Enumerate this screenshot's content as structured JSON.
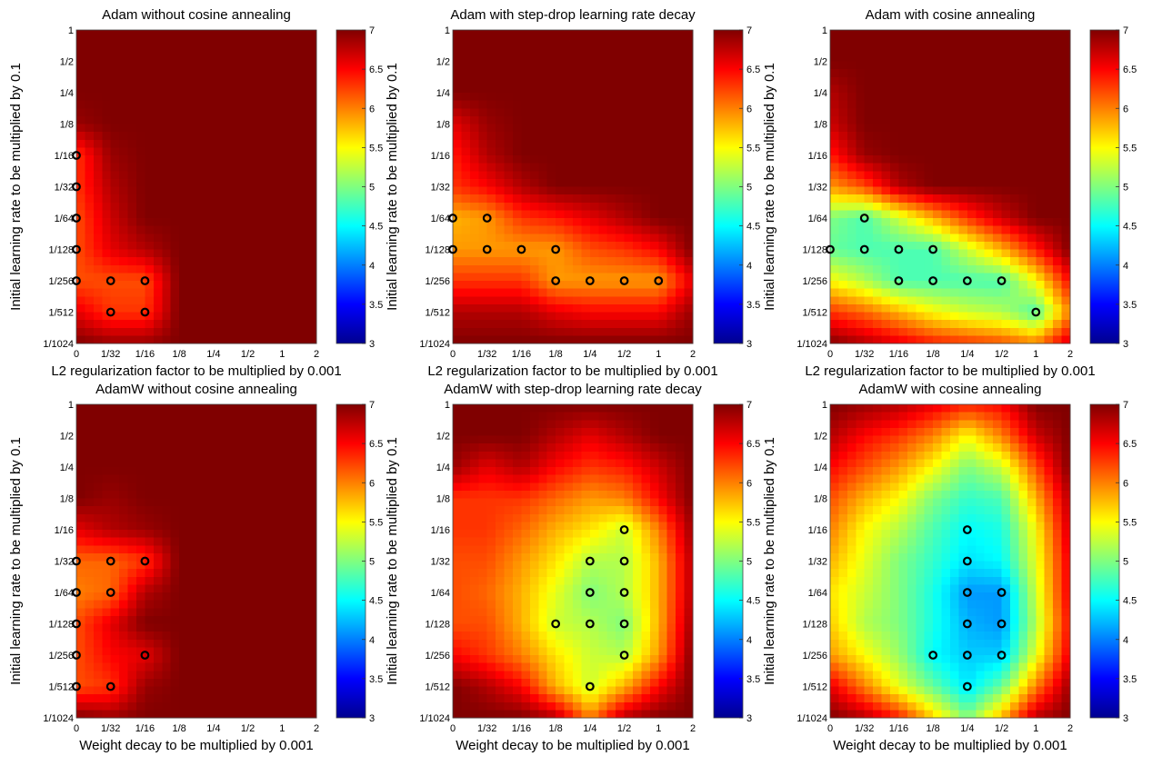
{
  "chart_data": {
    "type": "heatmap",
    "colorbar": {
      "min": 3,
      "max": 7,
      "ticks": [
        "3",
        "3.5",
        "4",
        "4.5",
        "5",
        "5.5",
        "6",
        "6.5",
        "7"
      ],
      "colormap": "jet"
    },
    "x_ticks": [
      "0",
      "1/32",
      "1/16",
      "1/8",
      "1/4",
      "1/2",
      "1",
      "2"
    ],
    "y_ticks": [
      "1",
      "1/2",
      "1/4",
      "1/8",
      "1/16",
      "1/32",
      "1/64",
      "1/128",
      "1/256",
      "1/512",
      "1/1024"
    ],
    "marker_color": "#000000",
    "panels": [
      {
        "title": "Adam without cosine annealing",
        "xlabel": "L2 regularization factor to be multiplied by 0.001",
        "ylabel": "Initial learning rate to be multiplied by 0.1",
        "grid": [
          [
            7,
            7,
            7,
            7,
            7,
            7,
            7,
            7
          ],
          [
            7,
            7,
            7,
            7,
            7,
            7,
            7,
            7
          ],
          [
            7,
            7,
            7,
            7,
            7,
            7,
            7,
            7
          ],
          [
            6.9,
            7,
            7,
            7,
            7,
            7,
            7,
            7
          ],
          [
            6.3,
            6.9,
            7,
            7,
            7,
            7,
            7,
            7
          ],
          [
            6.3,
            6.8,
            7,
            7,
            7,
            7,
            7,
            7
          ],
          [
            6.2,
            6.7,
            7,
            7,
            7,
            7,
            7,
            7
          ],
          [
            6.2,
            6.6,
            6.8,
            7,
            7,
            7,
            7,
            7
          ],
          [
            6.2,
            6.2,
            6.2,
            7,
            7,
            7,
            7,
            7
          ],
          [
            6.6,
            6.3,
            6.3,
            7,
            7,
            7,
            7,
            7
          ],
          [
            7,
            6.9,
            6.9,
            7,
            7,
            7,
            7,
            7
          ]
        ],
        "best_points": [
          [
            "0",
            "1/16"
          ],
          [
            "0",
            "1/32"
          ],
          [
            "0",
            "1/64"
          ],
          [
            "0",
            "1/128"
          ],
          [
            "0",
            "1/256"
          ],
          [
            "1/32",
            "1/256"
          ],
          [
            "1/16",
            "1/256"
          ],
          [
            "1/32",
            "1/512"
          ],
          [
            "1/16",
            "1/512"
          ]
        ]
      },
      {
        "title": "Adam with step-drop learning rate decay",
        "xlabel": "L2 regularization factor to be multiplied by 0.001",
        "ylabel": "Initial learning rate to be multiplied by 0.1",
        "grid": [
          [
            7,
            7,
            7,
            7,
            7,
            7,
            7,
            7
          ],
          [
            7,
            7,
            7,
            7,
            7,
            7,
            7,
            7
          ],
          [
            7,
            7,
            7,
            7,
            7,
            7,
            7,
            7
          ],
          [
            6.6,
            6.9,
            7,
            7,
            7,
            7,
            7,
            7
          ],
          [
            6.4,
            6.8,
            7,
            7,
            7,
            7,
            7,
            7
          ],
          [
            6.3,
            6.5,
            6.8,
            7,
            7,
            7,
            7,
            7
          ],
          [
            5.8,
            5.9,
            6.3,
            6.4,
            6.6,
            6.8,
            7,
            7
          ],
          [
            5.9,
            5.9,
            5.9,
            5.9,
            6.2,
            6.3,
            6.5,
            7
          ],
          [
            6.3,
            6.3,
            6.3,
            5.9,
            5.9,
            5.9,
            5.9,
            6.6
          ],
          [
            6.8,
            6.8,
            6.8,
            6.6,
            6.5,
            6.5,
            6.5,
            6.9
          ],
          [
            7,
            7,
            7,
            7,
            7,
            7,
            7,
            7
          ]
        ],
        "best_points": [
          [
            "0",
            "1/64"
          ],
          [
            "1/32",
            "1/64"
          ],
          [
            "0",
            "1/128"
          ],
          [
            "1/32",
            "1/128"
          ],
          [
            "1/16",
            "1/128"
          ],
          [
            "1/8",
            "1/128"
          ],
          [
            "1/8",
            "1/256"
          ],
          [
            "1/4",
            "1/256"
          ],
          [
            "1/2",
            "1/256"
          ],
          [
            "1",
            "1/256"
          ]
        ]
      },
      {
        "title": "Adam with cosine annealing",
        "xlabel": "L2 regularization factor to be multiplied by 0.001",
        "ylabel": "Initial learning rate to be multiplied by 0.1",
        "grid": [
          [
            7,
            7,
            7,
            7,
            7,
            7,
            7,
            7
          ],
          [
            7,
            7,
            7,
            7,
            7,
            7,
            7,
            7
          ],
          [
            6.8,
            7,
            7,
            7,
            7,
            7,
            7,
            7
          ],
          [
            6.7,
            7,
            7,
            7,
            7,
            7,
            7,
            7
          ],
          [
            6.4,
            6.9,
            7,
            7,
            7,
            7,
            7,
            7
          ],
          [
            5.9,
            6.2,
            6.8,
            7,
            7,
            7,
            7,
            7
          ],
          [
            5.0,
            4.8,
            5.3,
            5.8,
            6.3,
            6.7,
            7,
            7
          ],
          [
            4.9,
            4.8,
            4.8,
            4.8,
            5.3,
            5.8,
            6.4,
            7
          ],
          [
            5.5,
            5.2,
            4.8,
            4.8,
            4.8,
            4.8,
            5.5,
            6.5
          ],
          [
            6.3,
            6.1,
            5.8,
            5.5,
            5.3,
            5.2,
            4.8,
            6.0
          ],
          [
            7,
            6.8,
            6.6,
            6.4,
            6.3,
            6.2,
            6.0,
            6.7
          ]
        ],
        "best_points": [
          [
            "1/32",
            "1/64"
          ],
          [
            "0",
            "1/128"
          ],
          [
            "1/32",
            "1/128"
          ],
          [
            "1/16",
            "1/128"
          ],
          [
            "1/8",
            "1/128"
          ],
          [
            "1/16",
            "1/256"
          ],
          [
            "1/8",
            "1/256"
          ],
          [
            "1/4",
            "1/256"
          ],
          [
            "1/2",
            "1/256"
          ],
          [
            "1",
            "1/512"
          ]
        ]
      },
      {
        "title": "AdamW without cosine annealing",
        "xlabel": "Weight decay to be multiplied by 0.001",
        "ylabel": "Initial learning rate to be multiplied by 0.1",
        "grid": [
          [
            7,
            7,
            7,
            7,
            7,
            7,
            7,
            7
          ],
          [
            7,
            7,
            7,
            7,
            7,
            7,
            7,
            7
          ],
          [
            7,
            7,
            7,
            7,
            7,
            7,
            7,
            7
          ],
          [
            7,
            6.9,
            7,
            7,
            7,
            7,
            7,
            7
          ],
          [
            6.6,
            6.8,
            6.9,
            7,
            7,
            7,
            7,
            7
          ],
          [
            6.1,
            6.1,
            6.3,
            7,
            7,
            7,
            7,
            7
          ],
          [
            6.0,
            6.1,
            6.8,
            7,
            7,
            7,
            7,
            7
          ],
          [
            6.2,
            6.6,
            7,
            7,
            7,
            7,
            7,
            7
          ],
          [
            6.2,
            6.5,
            6.6,
            7,
            7,
            7,
            7,
            7
          ],
          [
            6.2,
            6.3,
            6.9,
            7,
            7,
            7,
            7,
            7
          ],
          [
            7,
            6.9,
            7,
            7,
            7,
            7,
            7,
            7
          ]
        ],
        "best_points": [
          [
            "0",
            "1/32"
          ],
          [
            "1/32",
            "1/32"
          ],
          [
            "1/16",
            "1/32"
          ],
          [
            "0",
            "1/64"
          ],
          [
            "1/32",
            "1/64"
          ],
          [
            "0",
            "1/128"
          ],
          [
            "0",
            "1/256"
          ],
          [
            "1/16",
            "1/256"
          ],
          [
            "0",
            "1/512"
          ],
          [
            "1/32",
            "1/512"
          ]
        ]
      },
      {
        "title": "AdamW with step-drop learning rate decay",
        "xlabel": "Weight decay to be multiplied by 0.001",
        "ylabel": "Initial learning rate to be multiplied by 0.1",
        "grid": [
          [
            7,
            7,
            7,
            7,
            7,
            7,
            7,
            7
          ],
          [
            7,
            7,
            7,
            6.8,
            6.6,
            6.8,
            7,
            7
          ],
          [
            6.9,
            6.6,
            6.8,
            6.5,
            6.3,
            6.4,
            6.7,
            7
          ],
          [
            6.3,
            6.3,
            6.3,
            6.1,
            5.9,
            6.0,
            6.5,
            7
          ],
          [
            6.3,
            6.3,
            6.1,
            5.8,
            5.6,
            5.3,
            6.0,
            6.9
          ],
          [
            6.2,
            6.2,
            5.9,
            5.6,
            5.2,
            5.2,
            5.8,
            6.8
          ],
          [
            6.2,
            6.1,
            5.8,
            5.4,
            5.0,
            5.2,
            5.8,
            6.8
          ],
          [
            6.2,
            6.2,
            5.8,
            5.3,
            5.2,
            5.0,
            5.8,
            6.9
          ],
          [
            6.5,
            6.3,
            6.0,
            5.6,
            5.3,
            5.2,
            5.9,
            7
          ],
          [
            7,
            6.8,
            6.5,
            5.8,
            5.3,
            5.8,
            6.5,
            7
          ],
          [
            7,
            7,
            7,
            6.8,
            6.0,
            6.8,
            7,
            7
          ]
        ],
        "best_points": [
          [
            "1/2",
            "1/16"
          ],
          [
            "1/4",
            "1/32"
          ],
          [
            "1/2",
            "1/32"
          ],
          [
            "1/4",
            "1/64"
          ],
          [
            "1/2",
            "1/64"
          ],
          [
            "1/8",
            "1/128"
          ],
          [
            "1/4",
            "1/128"
          ],
          [
            "1/2",
            "1/128"
          ],
          [
            "1/2",
            "1/256"
          ],
          [
            "1/4",
            "1/512"
          ]
        ]
      },
      {
        "title": "AdamW with cosine annealing",
        "xlabel": "Weight decay to be multiplied by 0.001",
        "ylabel": "Initial learning rate to be multiplied by 0.1",
        "grid": [
          [
            7,
            6.9,
            6.8,
            6.6,
            6.4,
            6.5,
            7,
            7
          ],
          [
            6.8,
            6.5,
            6.3,
            6.0,
            5.5,
            6.0,
            6.7,
            7
          ],
          [
            6.5,
            6.2,
            5.9,
            5.5,
            5.0,
            5.3,
            6.2,
            7
          ],
          [
            6.2,
            5.8,
            5.5,
            5.0,
            4.7,
            4.8,
            5.8,
            6.8
          ],
          [
            6.0,
            5.5,
            5.2,
            4.8,
            4.5,
            4.6,
            5.5,
            6.7
          ],
          [
            5.8,
            5.4,
            5.0,
            4.7,
            4.4,
            4.5,
            5.4,
            6.6
          ],
          [
            5.6,
            5.3,
            5.0,
            4.6,
            4.1,
            4.1,
            5.3,
            6.6
          ],
          [
            5.7,
            5.2,
            5.0,
            4.6,
            4.2,
            4.1,
            5.2,
            6.5
          ],
          [
            5.9,
            5.5,
            5.1,
            4.5,
            4.3,
            4.3,
            5.4,
            6.6
          ],
          [
            6.6,
            6.0,
            5.4,
            4.9,
            4.4,
            4.9,
            6.0,
            6.9
          ],
          [
            7,
            6.8,
            6.4,
            5.7,
            5.0,
            5.8,
            6.8,
            7
          ]
        ],
        "best_points": [
          [
            "1/4",
            "1/16"
          ],
          [
            "1/4",
            "1/32"
          ],
          [
            "1/4",
            "1/64"
          ],
          [
            "1/2",
            "1/64"
          ],
          [
            "1/4",
            "1/128"
          ],
          [
            "1/2",
            "1/128"
          ],
          [
            "1/8",
            "1/256"
          ],
          [
            "1/4",
            "1/256"
          ],
          [
            "1/2",
            "1/256"
          ],
          [
            "1/4",
            "1/512"
          ]
        ]
      }
    ]
  }
}
